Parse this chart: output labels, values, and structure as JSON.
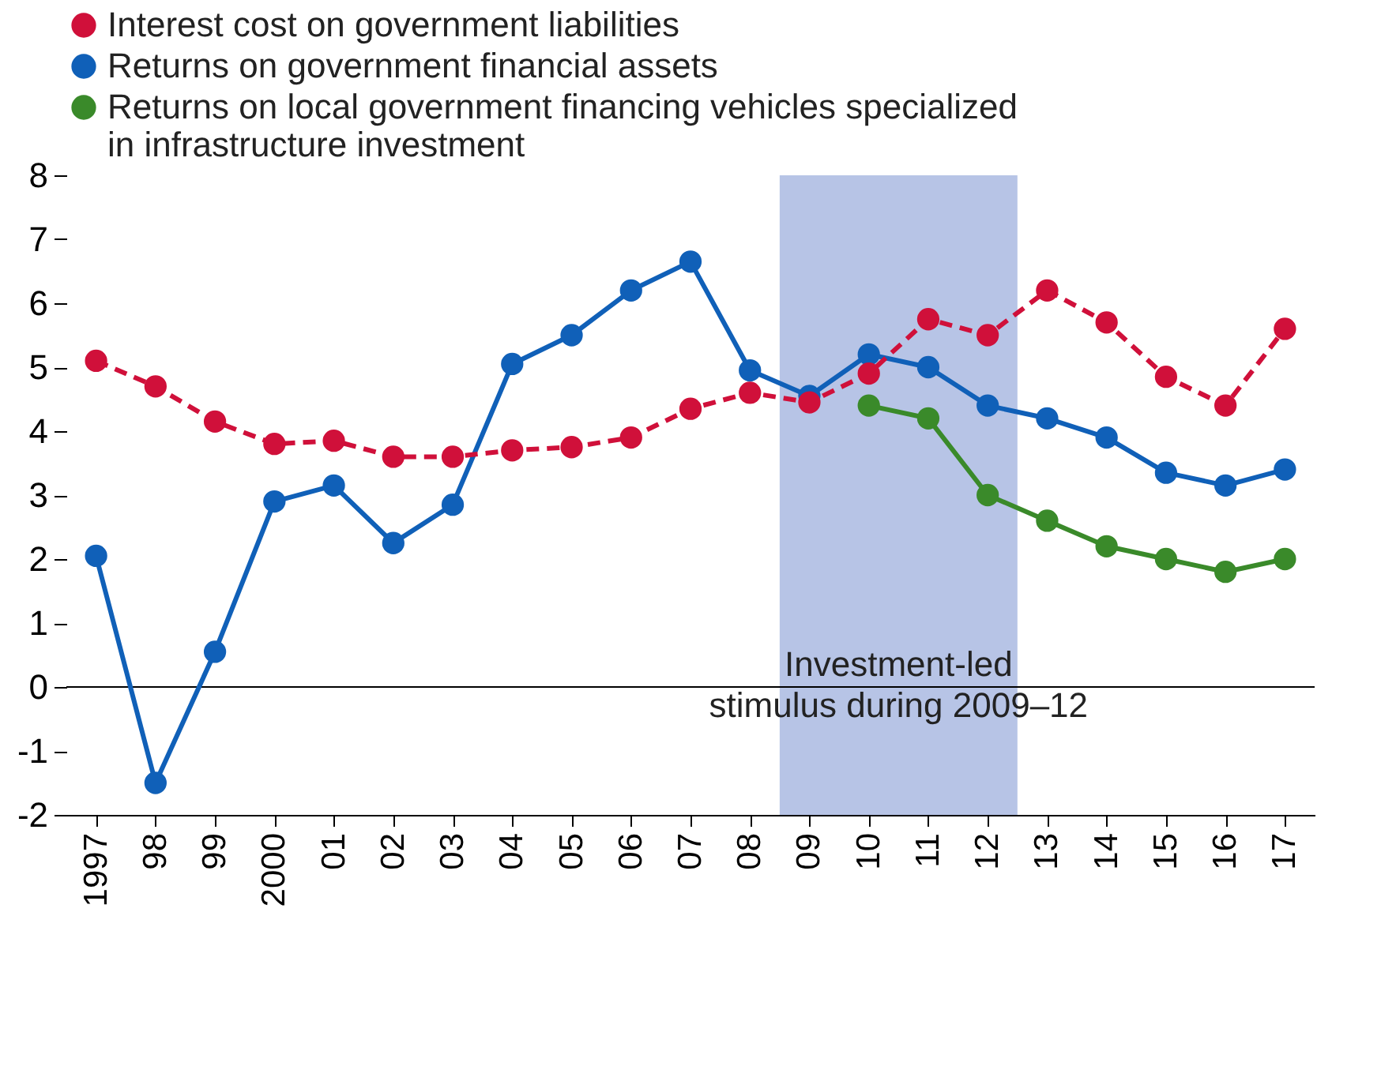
{
  "chart_data": {
    "type": "line",
    "x": [
      1997,
      1998,
      1999,
      2000,
      2001,
      2002,
      2003,
      2004,
      2005,
      2006,
      2007,
      2008,
      2009,
      2010,
      2011,
      2012,
      2013,
      2014,
      2015,
      2016,
      2017
    ],
    "series": [
      {
        "name": "Interest cost on government liabilities",
        "color": "#d0103a",
        "line_style": "dashed",
        "values": [
          5.1,
          4.7,
          4.15,
          3.8,
          3.85,
          3.6,
          3.6,
          3.7,
          3.75,
          3.9,
          4.35,
          4.6,
          4.45,
          4.9,
          5.75,
          5.5,
          6.2,
          5.7,
          4.85,
          4.4,
          5.6
        ]
      },
      {
        "name": "Returns on government financial assets",
        "color": "#1060b8",
        "line_style": "solid",
        "values": [
          2.05,
          -1.5,
          0.55,
          2.9,
          3.15,
          2.25,
          2.85,
          5.05,
          5.5,
          6.2,
          6.65,
          4.95,
          4.55,
          5.2,
          5.0,
          4.4,
          4.2,
          3.9,
          3.35,
          3.15,
          3.4
        ]
      },
      {
        "name": "Returns on local government financing vehicles specialized in infrastructure investment",
        "color": "#3a8a2a",
        "line_style": "solid",
        "values": [
          null,
          null,
          null,
          null,
          null,
          null,
          null,
          null,
          null,
          null,
          null,
          null,
          null,
          4.4,
          4.2,
          3.0,
          2.6,
          2.2,
          2.0,
          1.8,
          2.0
        ]
      }
    ],
    "xlim": [
      1996.5,
      2017.5
    ],
    "xticks": [
      1997,
      {
        "value": 1998,
        "label": "98"
      },
      {
        "value": 1999,
        "label": "99"
      },
      2000,
      {
        "value": 2001,
        "label": "01"
      },
      {
        "value": 2002,
        "label": "02"
      },
      {
        "value": 2003,
        "label": "03"
      },
      {
        "value": 2004,
        "label": "04"
      },
      {
        "value": 2005,
        "label": "05"
      },
      {
        "value": 2006,
        "label": "06"
      },
      {
        "value": 2007,
        "label": "07"
      },
      {
        "value": 2008,
        "label": "08"
      },
      {
        "value": 2009,
        "label": "09"
      },
      {
        "value": 2010,
        "label": "10"
      },
      {
        "value": 2011,
        "label": "11"
      },
      {
        "value": 2012,
        "label": "12"
      },
      {
        "value": 2013,
        "label": "13"
      },
      {
        "value": 2014,
        "label": "14"
      },
      {
        "value": 2015,
        "label": "15"
      },
      {
        "value": 2016,
        "label": "16"
      },
      {
        "value": 2017,
        "label": "17"
      }
    ],
    "ylim": [
      -2,
      8
    ],
    "yticks": [
      -2,
      -1,
      0,
      1,
      2,
      3,
      4,
      5,
      6,
      7,
      8
    ],
    "bands": [
      {
        "axis": "x",
        "from": 2008.5,
        "to": 2012.5,
        "label": "Investment-led stimulus during 2009–12",
        "color": "#b7c4e6"
      }
    ],
    "ref_lines": [
      {
        "axis": "y",
        "value": 0,
        "color": "#000000"
      }
    ],
    "marker": "circle",
    "grid": false,
    "legend": "top left"
  }
}
